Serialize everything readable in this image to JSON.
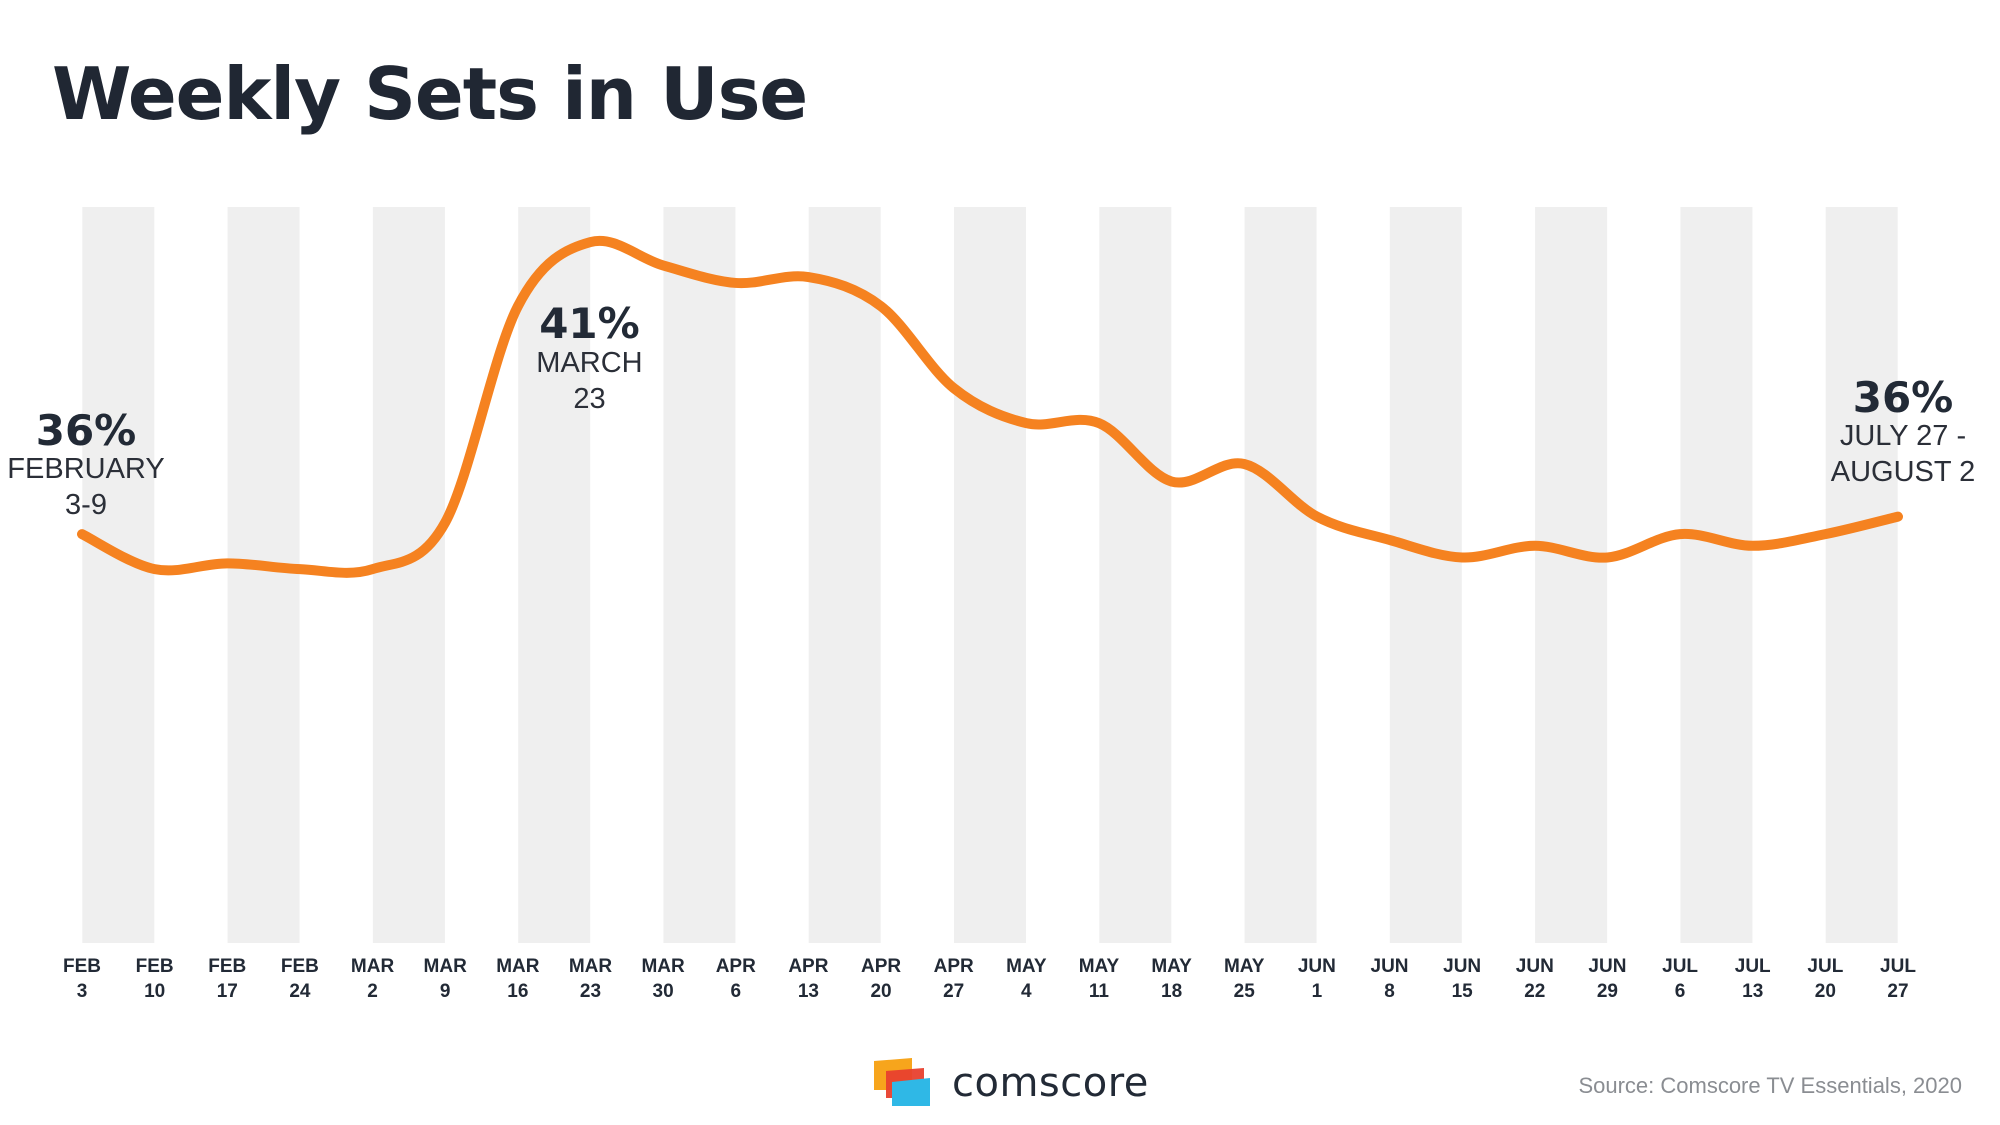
{
  "title": "Weekly Sets in Use",
  "chart_data": {
    "type": "line",
    "title": "Weekly Sets in Use",
    "xlabel": "",
    "ylabel": "",
    "categories": [
      [
        "FEB",
        "3"
      ],
      [
        "FEB",
        "10"
      ],
      [
        "FEB",
        "17"
      ],
      [
        "FEB",
        "24"
      ],
      [
        "MAR",
        "2"
      ],
      [
        "MAR",
        "9"
      ],
      [
        "MAR",
        "16"
      ],
      [
        "MAR",
        "23"
      ],
      [
        "MAR",
        "30"
      ],
      [
        "APR",
        "6"
      ],
      [
        "APR",
        "13"
      ],
      [
        "APR",
        "20"
      ],
      [
        "APR",
        "27"
      ],
      [
        "MAY",
        "4"
      ],
      [
        "MAY",
        "11"
      ],
      [
        "MAY",
        "18"
      ],
      [
        "MAY",
        "25"
      ],
      [
        "JUN",
        "1"
      ],
      [
        "JUN",
        "8"
      ],
      [
        "JUN",
        "15"
      ],
      [
        "JUN",
        "22"
      ],
      [
        "JUN",
        "29"
      ],
      [
        "JUL",
        "6"
      ],
      [
        "JUL",
        "13"
      ],
      [
        "JUL",
        "20"
      ],
      [
        "JUL",
        "27"
      ]
    ],
    "series": [
      {
        "name": "Weekly Sets in Use (%)",
        "values": [
          36.0,
          35.4,
          35.5,
          35.4,
          35.4,
          36.2,
          39.9,
          41.0,
          40.6,
          40.3,
          40.4,
          39.9,
          38.5,
          37.9,
          37.9,
          36.9,
          37.2,
          36.3,
          35.9,
          35.6,
          35.8,
          35.6,
          36.0,
          35.8,
          36.0,
          36.3
        ]
      }
    ],
    "ylim": [
      29.0,
      41.6
    ],
    "grid": "alternating vertical bands",
    "color": "#F58220",
    "band_color": "#EFEFEF",
    "annotations": [
      {
        "value": "36%",
        "line1": "FEBRUARY",
        "line2": "3-9",
        "index": 0
      },
      {
        "value": "41%",
        "line1": "MARCH",
        "line2": "23",
        "index": 7
      },
      {
        "value": "36%",
        "line1": "JULY 27 -",
        "line2": "AUGUST 2",
        "index": 25
      }
    ]
  },
  "footer": {
    "brand": "comscore",
    "source": "Source: Comscore TV Essentials, 2020"
  },
  "colors": {
    "line": "#F58220",
    "text": "#222A36",
    "logo_orange": "#F7A51C",
    "logo_red": "#E8402E",
    "logo_blue": "#2FB8E6"
  }
}
